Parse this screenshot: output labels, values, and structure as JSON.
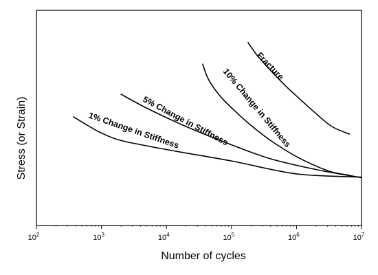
{
  "chart_data": {
    "type": "line",
    "title": "",
    "xlabel": "Number of cycles",
    "ylabel": "Stress (or Strain)",
    "x_scale": "log",
    "xlim": [
      100,
      10000000
    ],
    "ylim": [
      0,
      1
    ],
    "y_ticks_shown": false,
    "grid": false,
    "x_ticks": [
      {
        "base": "10",
        "exp": "2",
        "value": 100
      },
      {
        "base": "10",
        "exp": "3",
        "value": 1000
      },
      {
        "base": "10",
        "exp": "4",
        "value": 10000
      },
      {
        "base": "10",
        "exp": "5",
        "value": 100000
      },
      {
        "base": "10",
        "exp": "6",
        "value": 1000000
      },
      {
        "base": "10",
        "exp": "7",
        "value": 10000000
      }
    ],
    "series": [
      {
        "name": "Fracture",
        "points": [
          [
            180000,
            0.85
          ],
          [
            250000,
            0.79
          ],
          [
            400000,
            0.72
          ],
          [
            700000,
            0.645
          ],
          [
            1200000,
            0.58
          ],
          [
            2000000,
            0.52
          ],
          [
            3500000,
            0.46
          ],
          [
            6500000,
            0.425
          ]
        ]
      },
      {
        "name": "10% Change in Stiffness",
        "points": [
          [
            36000,
            0.75
          ],
          [
            45000,
            0.675
          ],
          [
            70000,
            0.595
          ],
          [
            120000,
            0.525
          ],
          [
            200000,
            0.465
          ],
          [
            400000,
            0.395
          ],
          [
            1000000,
            0.32
          ],
          [
            3000000,
            0.255
          ],
          [
            6000000,
            0.235
          ],
          [
            10000000,
            0.222
          ]
        ]
      },
      {
        "name": "5% Change in Stiffness",
        "points": [
          [
            2000,
            0.61
          ],
          [
            5000,
            0.545
          ],
          [
            20000,
            0.46
          ],
          [
            100000,
            0.375
          ],
          [
            400000,
            0.31
          ],
          [
            2000000,
            0.26
          ],
          [
            10000000,
            0.222
          ]
        ]
      },
      {
        "name": "1% Change in Stiffness",
        "points": [
          [
            370,
            0.505
          ],
          [
            700,
            0.455
          ],
          [
            1000,
            0.43
          ],
          [
            2000,
            0.395
          ],
          [
            10000,
            0.353
          ],
          [
            100000,
            0.3
          ],
          [
            1000000,
            0.24
          ],
          [
            10000000,
            0.225
          ]
        ]
      }
    ]
  }
}
